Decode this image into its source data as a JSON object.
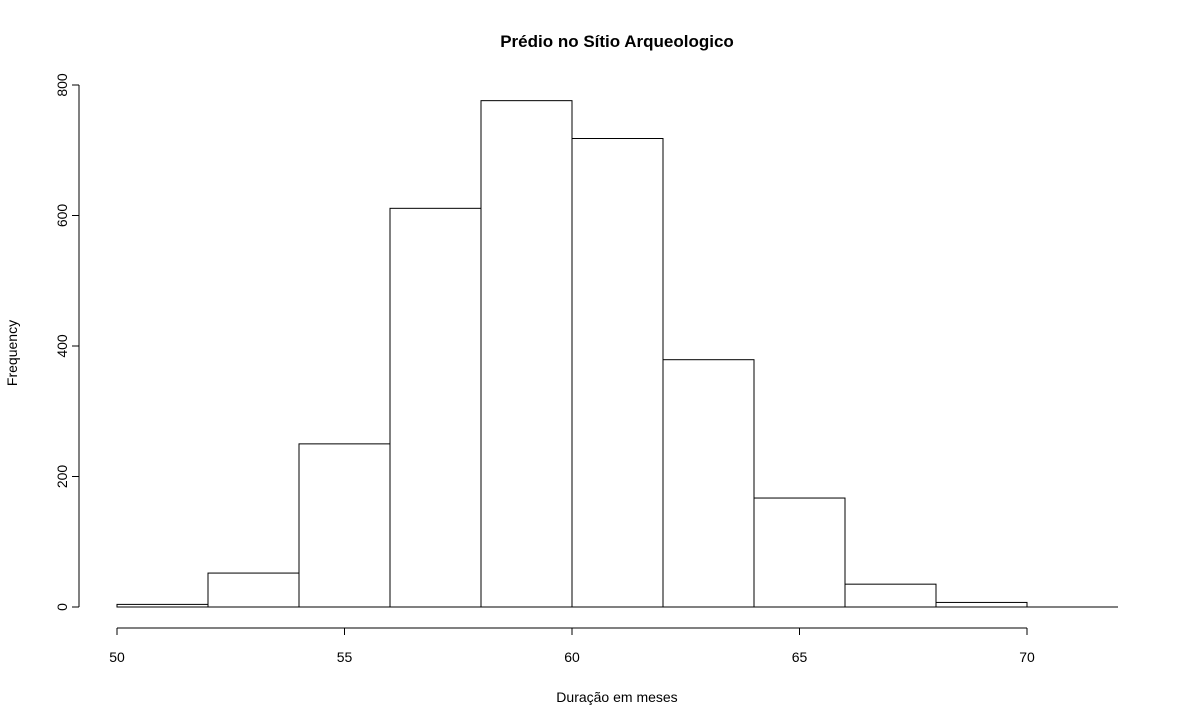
{
  "chart_data": {
    "type": "bar",
    "title": "Prédio no Sítio Arqueologico",
    "xlabel": "Duração em meses",
    "ylabel": "Frequency",
    "bins": [
      {
        "x0": 50,
        "x1": 52,
        "count": 4
      },
      {
        "x0": 52,
        "x1": 54,
        "count": 52
      },
      {
        "x0": 54,
        "x1": 56,
        "count": 250
      },
      {
        "x0": 56,
        "x1": 58,
        "count": 611
      },
      {
        "x0": 58,
        "x1": 60,
        "count": 776
      },
      {
        "x0": 60,
        "x1": 62,
        "count": 718
      },
      {
        "x0": 62,
        "x1": 64,
        "count": 379
      },
      {
        "x0": 64,
        "x1": 66,
        "count": 167
      },
      {
        "x0": 66,
        "x1": 68,
        "count": 35
      },
      {
        "x0": 68,
        "x1": 70,
        "count": 7
      },
      {
        "x0": 70,
        "x1": 72,
        "count": 0
      }
    ],
    "xticks": [
      50,
      55,
      60,
      65,
      70
    ],
    "yticks": [
      0,
      200,
      400,
      600,
      800
    ],
    "xlim": [
      50,
      72
    ],
    "ylim": [
      0,
      800
    ],
    "grid": false,
    "legend": "none"
  }
}
